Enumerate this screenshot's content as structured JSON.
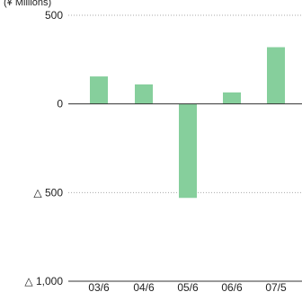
{
  "chart_data": {
    "type": "bar",
    "unit_label": "(¥ Millions)",
    "categories": [
      "03/6",
      "04/6",
      "05/6",
      "06/6",
      "07/5"
    ],
    "values": [
      155,
      110,
      -530,
      65,
      320
    ],
    "ylim": [
      -1000,
      500
    ],
    "yticks": [
      500,
      0,
      -500,
      -1000
    ],
    "ytick_labels": [
      "500",
      "0",
      "△ 500",
      "△ 1,000"
    ],
    "grid": "dotted horizontal at ±500",
    "bar_color": "#86cf9c",
    "axis_color": "#333333",
    "grid_color": "#aaaaaa"
  }
}
